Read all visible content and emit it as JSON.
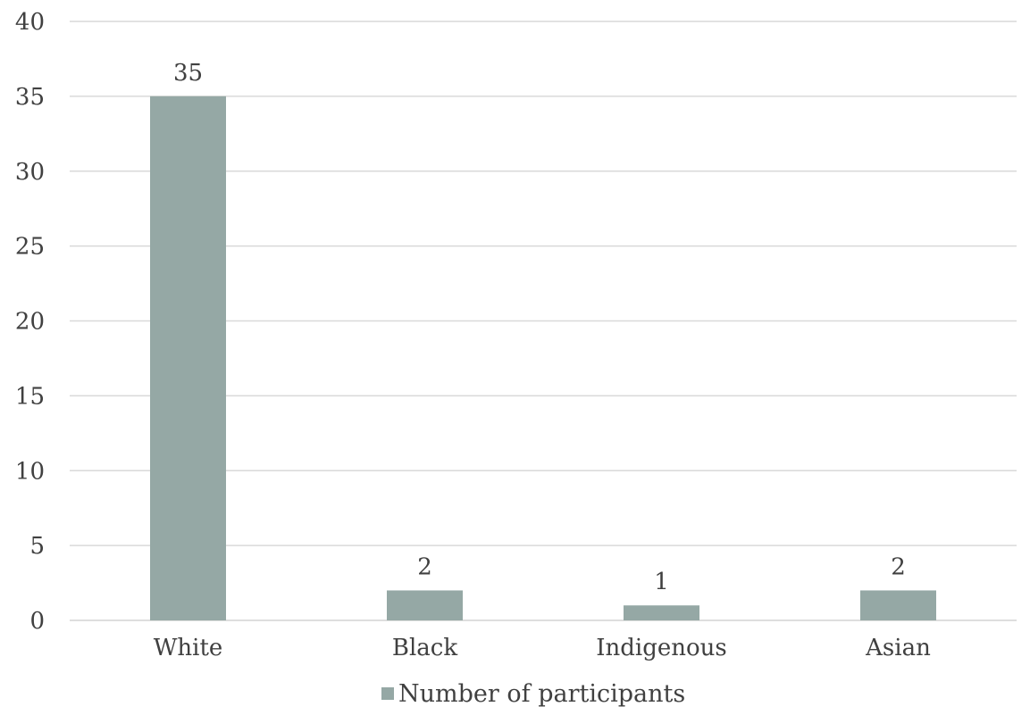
{
  "chart_data": {
    "type": "bar",
    "categories": [
      "White",
      "Black",
      "Indigenous",
      "Asian"
    ],
    "series": [
      {
        "name": "Number of participants",
        "values": [
          35,
          2,
          1,
          2
        ],
        "color": "#95a8a5"
      }
    ],
    "ylim": [
      0,
      40
    ],
    "yticks": [
      0,
      5,
      10,
      15,
      20,
      25,
      30,
      35,
      40
    ],
    "grid": true,
    "legend_position": "bottom",
    "data_labels": true,
    "gridline_color": "#d9d9d9",
    "text_color": "#404040"
  }
}
